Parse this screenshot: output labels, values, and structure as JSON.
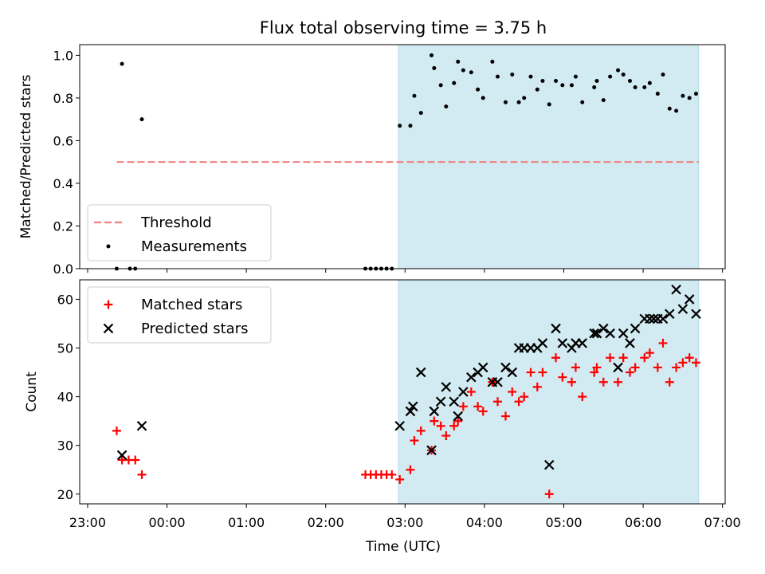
{
  "chart_data": {
    "type": "scatter",
    "title": "Flux total observing time = 3.75 h",
    "xlabel": "Time (UTC)",
    "x_ticks": [
      "23:00",
      "00:00",
      "01:00",
      "02:00",
      "03:00",
      "04:00",
      "05:00",
      "06:00",
      "07:00"
    ],
    "x_range": [
      "22:54",
      "07:02"
    ],
    "highlight_span": [
      "02:55",
      "06:42"
    ],
    "highlight_color": "#add8e6",
    "grid": false,
    "panels": [
      {
        "ylabel": "Matched/Predicted stars",
        "ylim": [
          0,
          1.05
        ],
        "yticks": [
          "0.0",
          "0.2",
          "0.4",
          "0.6",
          "0.8",
          "1.0"
        ],
        "legend": "lower-left",
        "threshold": {
          "name": "Threshold",
          "value": 0.5,
          "color": "#f08080",
          "x_range": [
            "23:22",
            "06:42"
          ]
        },
        "series": [
          {
            "name": "Measurements",
            "marker": "dot",
            "color": "#000000",
            "points": [
              [
                "23:22",
                0.0
              ],
              [
                "23:26",
                0.96
              ],
              [
                "23:32",
                0.0
              ],
              [
                "23:36",
                0.0
              ],
              [
                "23:41",
                0.7
              ],
              [
                "02:30",
                0.0
              ],
              [
                "02:34",
                0.0
              ],
              [
                "02:38",
                0.0
              ],
              [
                "02:42",
                0.0
              ],
              [
                "02:46",
                0.0
              ],
              [
                "02:50",
                0.0
              ],
              [
                "02:56",
                0.67
              ],
              [
                "03:04",
                0.67
              ],
              [
                "03:07",
                0.81
              ],
              [
                "03:12",
                0.73
              ],
              [
                "03:20",
                1.0
              ],
              [
                "03:22",
                0.94
              ],
              [
                "03:27",
                0.86
              ],
              [
                "03:31",
                0.76
              ],
              [
                "03:37",
                0.87
              ],
              [
                "03:40",
                0.97
              ],
              [
                "03:44",
                0.93
              ],
              [
                "03:50",
                0.92
              ],
              [
                "03:55",
                0.84
              ],
              [
                "03:59",
                0.8
              ],
              [
                "04:06",
                0.97
              ],
              [
                "04:10",
                0.9
              ],
              [
                "04:16",
                0.78
              ],
              [
                "04:21",
                0.91
              ],
              [
                "04:26",
                0.78
              ],
              [
                "04:30",
                0.8
              ],
              [
                "04:35",
                0.9
              ],
              [
                "04:40",
                0.84
              ],
              [
                "04:44",
                0.88
              ],
              [
                "04:49",
                0.77
              ],
              [
                "04:54",
                0.88
              ],
              [
                "04:59",
                0.86
              ],
              [
                "05:06",
                0.86
              ],
              [
                "05:09",
                0.9
              ],
              [
                "05:14",
                0.78
              ],
              [
                "05:23",
                0.85
              ],
              [
                "05:25",
                0.88
              ],
              [
                "05:30",
                0.79
              ],
              [
                "05:35",
                0.9
              ],
              [
                "05:41",
                0.93
              ],
              [
                "05:45",
                0.91
              ],
              [
                "05:50",
                0.88
              ],
              [
                "05:54",
                0.85
              ],
              [
                "06:01",
                0.85
              ],
              [
                "06:05",
                0.87
              ],
              [
                "06:11",
                0.82
              ],
              [
                "06:15",
                0.91
              ],
              [
                "06:20",
                0.75
              ],
              [
                "06:25",
                0.74
              ],
              [
                "06:30",
                0.81
              ],
              [
                "06:35",
                0.8
              ],
              [
                "06:40",
                0.82
              ]
            ]
          }
        ]
      },
      {
        "ylabel": "Count",
        "ylim": [
          18,
          64
        ],
        "yticks": [
          "20",
          "30",
          "40",
          "50",
          "60"
        ],
        "legend": "upper-left",
        "series": [
          {
            "name": "Matched stars",
            "marker": "plus",
            "color": "#ff0000",
            "points": [
              [
                "23:22",
                33
              ],
              [
                "23:26",
                27
              ],
              [
                "23:31",
                27
              ],
              [
                "23:36",
                27
              ],
              [
                "23:41",
                24
              ],
              [
                "02:30",
                24
              ],
              [
                "02:34",
                24
              ],
              [
                "02:38",
                24
              ],
              [
                "02:42",
                24
              ],
              [
                "02:46",
                24
              ],
              [
                "02:50",
                24
              ],
              [
                "02:56",
                23
              ],
              [
                "03:04",
                25
              ],
              [
                "03:07",
                31
              ],
              [
                "03:12",
                33
              ],
              [
                "03:20",
                29
              ],
              [
                "03:22",
                35
              ],
              [
                "03:27",
                34
              ],
              [
                "03:31",
                32
              ],
              [
                "03:37",
                34
              ],
              [
                "03:40",
                35
              ],
              [
                "03:44",
                38
              ],
              [
                "03:50",
                41
              ],
              [
                "03:55",
                38
              ],
              [
                "03:59",
                37
              ],
              [
                "04:06",
                43
              ],
              [
                "04:10",
                39
              ],
              [
                "04:16",
                36
              ],
              [
                "04:21",
                41
              ],
              [
                "04:26",
                39
              ],
              [
                "04:30",
                40
              ],
              [
                "04:35",
                45
              ],
              [
                "04:40",
                42
              ],
              [
                "04:44",
                45
              ],
              [
                "04:49",
                20
              ],
              [
                "04:54",
                48
              ],
              [
                "04:59",
                44
              ],
              [
                "05:06",
                43
              ],
              [
                "05:09",
                46
              ],
              [
                "05:14",
                40
              ],
              [
                "05:23",
                45
              ],
              [
                "05:25",
                46
              ],
              [
                "05:30",
                43
              ],
              [
                "05:35",
                48
              ],
              [
                "05:41",
                43
              ],
              [
                "05:45",
                48
              ],
              [
                "05:50",
                45
              ],
              [
                "05:54",
                46
              ],
              [
                "06:01",
                48
              ],
              [
                "06:05",
                49
              ],
              [
                "06:11",
                46
              ],
              [
                "06:15",
                51
              ],
              [
                "06:20",
                43
              ],
              [
                "06:25",
                46
              ],
              [
                "06:30",
                47
              ],
              [
                "06:35",
                48
              ],
              [
                "06:40",
                47
              ]
            ]
          },
          {
            "name": "Predicted stars",
            "marker": "x",
            "color": "#000000",
            "points": [
              [
                "23:26",
                28
              ],
              [
                "23:41",
                34
              ],
              [
                "02:56",
                34
              ],
              [
                "03:04",
                37
              ],
              [
                "03:06",
                38
              ],
              [
                "03:12",
                45
              ],
              [
                "03:20",
                29
              ],
              [
                "03:22",
                37
              ],
              [
                "03:27",
                39
              ],
              [
                "03:31",
                42
              ],
              [
                "03:37",
                39
              ],
              [
                "03:40",
                36
              ],
              [
                "03:44",
                41
              ],
              [
                "03:50",
                44
              ],
              [
                "03:55",
                45
              ],
              [
                "03:59",
                46
              ],
              [
                "04:06",
                43
              ],
              [
                "04:10",
                43
              ],
              [
                "04:16",
                46
              ],
              [
                "04:21",
                45
              ],
              [
                "04:26",
                50
              ],
              [
                "04:30",
                50
              ],
              [
                "04:35",
                50
              ],
              [
                "04:40",
                50
              ],
              [
                "04:44",
                51
              ],
              [
                "04:49",
                26
              ],
              [
                "04:54",
                54
              ],
              [
                "04:59",
                51
              ],
              [
                "05:06",
                50
              ],
              [
                "05:09",
                51
              ],
              [
                "05:14",
                51
              ],
              [
                "05:23",
                53
              ],
              [
                "05:25",
                53
              ],
              [
                "05:30",
                54
              ],
              [
                "05:35",
                53
              ],
              [
                "05:41",
                46
              ],
              [
                "05:45",
                53
              ],
              [
                "05:50",
                51
              ],
              [
                "05:54",
                54
              ],
              [
                "06:01",
                56
              ],
              [
                "06:05",
                56
              ],
              [
                "06:08",
                56
              ],
              [
                "06:11",
                56
              ],
              [
                "06:15",
                56
              ],
              [
                "06:20",
                57
              ],
              [
                "06:25",
                62
              ],
              [
                "06:30",
                58
              ],
              [
                "06:35",
                60
              ],
              [
                "06:40",
                57
              ]
            ]
          }
        ]
      }
    ]
  }
}
